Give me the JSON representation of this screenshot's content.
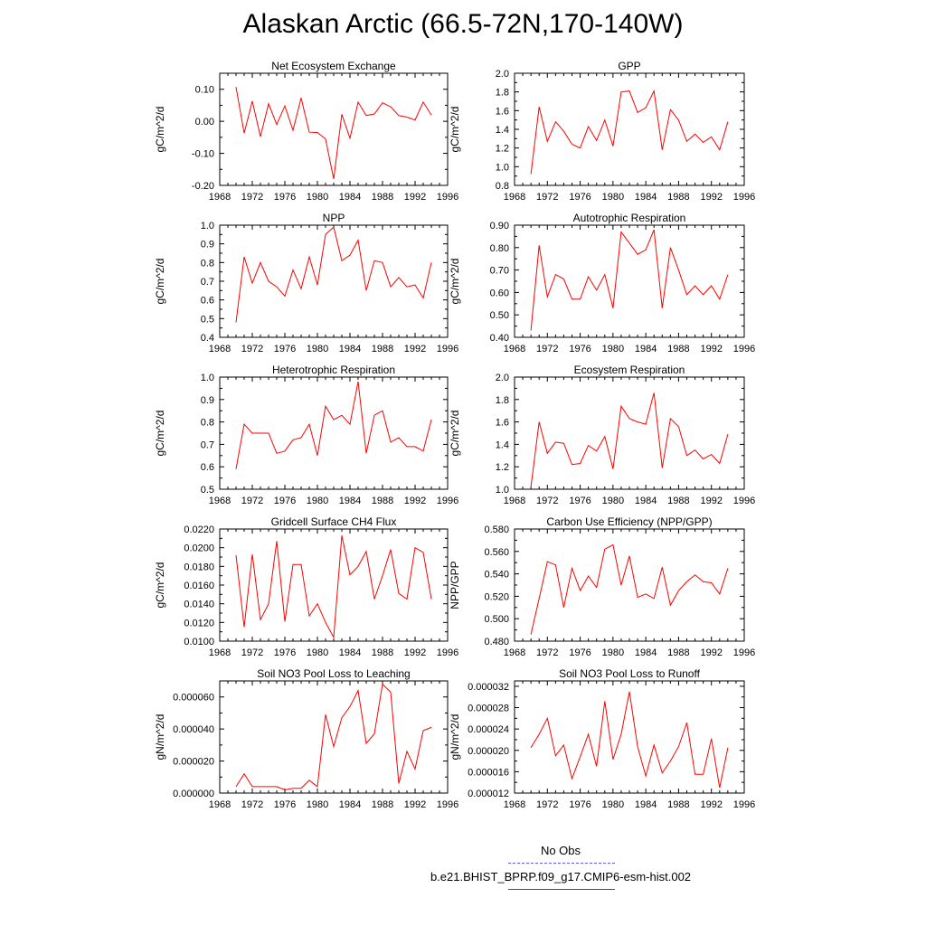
{
  "title": "Alaskan Arctic (66.5-72N,170-140W)",
  "legend": [
    {
      "label": "No Obs",
      "color": "#5a5aff",
      "dash": true
    },
    {
      "label": "b.e21.BHIST_BPRP.f09_g17.CMIP6-esm-hist.002",
      "color": "#ff0000",
      "dash": false
    }
  ],
  "chart_data": [
    {
      "type": "line",
      "title": "Net Ecosystem Exchange",
      "ylabel": "gC/m^2/d",
      "xlim": [
        1968,
        1996
      ],
      "xticks": [
        "1968",
        "1972",
        "1976",
        "1980",
        "1984",
        "1988",
        "1992",
        "1996"
      ],
      "ylim": [
        -0.2,
        0.15
      ],
      "yticks": [
        -0.2,
        -0.1,
        0.0,
        0.1
      ],
      "ytick_labels": [
        "-0.20",
        "-0.10",
        "0.00",
        "0.10"
      ],
      "x": [
        1970,
        1971,
        1972,
        1973,
        1974,
        1975,
        1976,
        1977,
        1978,
        1979,
        1980,
        1981,
        1982,
        1983,
        1984,
        1985,
        1986,
        1987,
        1988,
        1989,
        1990,
        1991,
        1992,
        1993,
        1994
      ],
      "series": [
        {
          "values": [
            0.107,
            -0.037,
            0.063,
            -0.048,
            0.055,
            -0.01,
            0.048,
            -0.028,
            0.073,
            -0.034,
            -0.035,
            -0.055,
            -0.18,
            0.022,
            -0.053,
            0.06,
            0.018,
            0.023,
            0.058,
            0.045,
            0.018,
            0.013,
            0.004,
            0.06,
            0.02
          ],
          "color": "#ff0000"
        }
      ]
    },
    {
      "type": "line",
      "title": "GPP",
      "ylabel": "gC/m^2/d",
      "xlim": [
        1968,
        1996
      ],
      "xticks": [
        "1968",
        "1972",
        "1976",
        "1980",
        "1984",
        "1988",
        "1992",
        "1996"
      ],
      "ylim": [
        0.8,
        2.0
      ],
      "yticks": [
        0.8,
        1.0,
        1.2,
        1.4,
        1.6,
        1.8,
        2.0
      ],
      "ytick_labels": [
        "0.8",
        "1.0",
        "1.2",
        "1.4",
        "1.6",
        "1.8",
        "2.0"
      ],
      "x": [
        1970,
        1971,
        1972,
        1973,
        1974,
        1975,
        1976,
        1977,
        1978,
        1979,
        1980,
        1981,
        1982,
        1983,
        1984,
        1985,
        1986,
        1987,
        1988,
        1989,
        1990,
        1991,
        1992,
        1993,
        1994
      ],
      "series": [
        {
          "values": [
            0.92,
            1.64,
            1.27,
            1.48,
            1.38,
            1.24,
            1.2,
            1.43,
            1.28,
            1.5,
            1.22,
            1.8,
            1.81,
            1.58,
            1.63,
            1.81,
            1.18,
            1.61,
            1.5,
            1.27,
            1.35,
            1.26,
            1.32,
            1.18,
            1.48
          ],
          "color": "#ff0000"
        }
      ]
    },
    {
      "type": "line",
      "title": "NPP",
      "ylabel": "gC/m^2/d",
      "xlim": [
        1968,
        1996
      ],
      "xticks": [
        "1968",
        "1972",
        "1976",
        "1980",
        "1984",
        "1988",
        "1992",
        "1996"
      ],
      "ylim": [
        0.4,
        1.0
      ],
      "yticks": [
        0.4,
        0.5,
        0.6,
        0.7,
        0.8,
        0.9,
        1.0
      ],
      "ytick_labels": [
        "0.4",
        "0.5",
        "0.6",
        "0.7",
        "0.8",
        "0.9",
        "1.0"
      ],
      "x": [
        1970,
        1971,
        1972,
        1973,
        1974,
        1975,
        1976,
        1977,
        1978,
        1979,
        1980,
        1981,
        1982,
        1983,
        1984,
        1985,
        1986,
        1987,
        1988,
        1989,
        1990,
        1991,
        1992,
        1993,
        1994
      ],
      "series": [
        {
          "values": [
            0.48,
            0.83,
            0.69,
            0.8,
            0.7,
            0.67,
            0.62,
            0.76,
            0.66,
            0.83,
            0.68,
            0.95,
            0.99,
            0.81,
            0.84,
            0.92,
            0.65,
            0.81,
            0.8,
            0.67,
            0.72,
            0.67,
            0.68,
            0.61,
            0.8
          ],
          "color": "#ff0000"
        }
      ]
    },
    {
      "type": "line",
      "title": "Autotrophic Respiration",
      "ylabel": "gC/m^2/d",
      "xlim": [
        1968,
        1996
      ],
      "xticks": [
        "1968",
        "1972",
        "1976",
        "1980",
        "1984",
        "1988",
        "1992",
        "1996"
      ],
      "ylim": [
        0.4,
        0.9
      ],
      "yticks": [
        0.4,
        0.5,
        0.6,
        0.7,
        0.8,
        0.9
      ],
      "ytick_labels": [
        "0.40",
        "0.50",
        "0.60",
        "0.70",
        "0.80",
        "0.90"
      ],
      "x": [
        1970,
        1971,
        1972,
        1973,
        1974,
        1975,
        1976,
        1977,
        1978,
        1979,
        1980,
        1981,
        1982,
        1983,
        1984,
        1985,
        1986,
        1987,
        1988,
        1989,
        1990,
        1991,
        1992,
        1993,
        1994
      ],
      "series": [
        {
          "values": [
            0.43,
            0.81,
            0.58,
            0.68,
            0.66,
            0.57,
            0.57,
            0.67,
            0.61,
            0.68,
            0.53,
            0.87,
            0.82,
            0.77,
            0.79,
            0.88,
            0.53,
            0.8,
            0.7,
            0.59,
            0.63,
            0.59,
            0.63,
            0.57,
            0.68
          ],
          "color": "#ff0000"
        }
      ]
    },
    {
      "type": "line",
      "title": "Heterotrophic Respiration",
      "ylabel": "gC/m^2/d",
      "xlim": [
        1968,
        1996
      ],
      "xticks": [
        "1968",
        "1972",
        "1976",
        "1980",
        "1984",
        "1988",
        "1992",
        "1996"
      ],
      "ylim": [
        0.5,
        1.0
      ],
      "yticks": [
        0.5,
        0.6,
        0.7,
        0.8,
        0.9,
        1.0
      ],
      "ytick_labels": [
        "0.5",
        "0.6",
        "0.7",
        "0.8",
        "0.9",
        "1.0"
      ],
      "x": [
        1970,
        1971,
        1972,
        1973,
        1974,
        1975,
        1976,
        1977,
        1978,
        1979,
        1980,
        1981,
        1982,
        1983,
        1984,
        1985,
        1986,
        1987,
        1988,
        1989,
        1990,
        1991,
        1992,
        1993,
        1994
      ],
      "series": [
        {
          "values": [
            0.59,
            0.79,
            0.75,
            0.75,
            0.75,
            0.66,
            0.67,
            0.72,
            0.73,
            0.79,
            0.65,
            0.87,
            0.81,
            0.83,
            0.79,
            0.98,
            0.66,
            0.83,
            0.85,
            0.71,
            0.73,
            0.69,
            0.69,
            0.67,
            0.81
          ],
          "color": "#ff0000"
        }
      ]
    },
    {
      "type": "line",
      "title": "Ecosystem Respiration",
      "ylabel": "gC/m^2/d",
      "xlim": [
        1968,
        1996
      ],
      "xticks": [
        "1968",
        "1972",
        "1976",
        "1980",
        "1984",
        "1988",
        "1992",
        "1996"
      ],
      "ylim": [
        1.0,
        2.0
      ],
      "yticks": [
        1.0,
        1.2,
        1.4,
        1.6,
        1.8,
        2.0
      ],
      "ytick_labels": [
        "1.0",
        "1.2",
        "1.4",
        "1.6",
        "1.8",
        "2.0"
      ],
      "x": [
        1970,
        1971,
        1972,
        1973,
        1974,
        1975,
        1976,
        1977,
        1978,
        1979,
        1980,
        1981,
        1982,
        1983,
        1984,
        1985,
        1986,
        1987,
        1988,
        1989,
        1990,
        1991,
        1992,
        1993,
        1994
      ],
      "series": [
        {
          "values": [
            1.02,
            1.6,
            1.32,
            1.42,
            1.41,
            1.22,
            1.23,
            1.39,
            1.34,
            1.47,
            1.18,
            1.74,
            1.63,
            1.6,
            1.58,
            1.86,
            1.19,
            1.63,
            1.56,
            1.3,
            1.35,
            1.27,
            1.31,
            1.23,
            1.49
          ],
          "color": "#ff0000"
        }
      ]
    },
    {
      "type": "line",
      "title": "Gridcell Surface CH4 Flux",
      "ylabel": "gC/m^2/d",
      "xlim": [
        1968,
        1996
      ],
      "xticks": [
        "1968",
        "1972",
        "1976",
        "1980",
        "1984",
        "1988",
        "1992",
        "1996"
      ],
      "ylim": [
        0.01,
        0.022
      ],
      "yticks": [
        0.01,
        0.012,
        0.014,
        0.016,
        0.018,
        0.02,
        0.022
      ],
      "ytick_labels": [
        "0.0100",
        "0.0120",
        "0.0140",
        "0.0160",
        "0.0180",
        "0.0200",
        "0.0220"
      ],
      "x": [
        1970,
        1971,
        1972,
        1973,
        1974,
        1975,
        1976,
        1977,
        1978,
        1979,
        1980,
        1981,
        1982,
        1983,
        1984,
        1985,
        1986,
        1987,
        1988,
        1989,
        1990,
        1991,
        1992,
        1993,
        1994
      ],
      "series": [
        {
          "values": [
            0.0192,
            0.0115,
            0.0193,
            0.0123,
            0.014,
            0.0207,
            0.0121,
            0.0182,
            0.0182,
            0.0127,
            0.014,
            0.012,
            0.0104,
            0.0213,
            0.0171,
            0.018,
            0.0196,
            0.0145,
            0.017,
            0.0198,
            0.0151,
            0.0145,
            0.02,
            0.0195,
            0.0145
          ],
          "color": "#ff0000"
        }
      ]
    },
    {
      "type": "line",
      "title": "Carbon Use Efficiency (NPP/GPP)",
      "ylabel": "NPP/GPP",
      "xlim": [
        1968,
        1996
      ],
      "xticks": [
        "1968",
        "1972",
        "1976",
        "1980",
        "1984",
        "1988",
        "1992",
        "1996"
      ],
      "ylim": [
        0.48,
        0.58
      ],
      "yticks": [
        0.48,
        0.5,
        0.52,
        0.54,
        0.56,
        0.58
      ],
      "ytick_labels": [
        "0.480",
        "0.500",
        "0.520",
        "0.540",
        "0.560",
        "0.580"
      ],
      "x": [
        1970,
        1971,
        1972,
        1973,
        1974,
        1975,
        1976,
        1977,
        1978,
        1979,
        1980,
        1981,
        1982,
        1983,
        1984,
        1985,
        1986,
        1987,
        1988,
        1989,
        1990,
        1991,
        1992,
        1993,
        1994
      ],
      "series": [
        {
          "values": [
            0.486,
            0.518,
            0.551,
            0.548,
            0.51,
            0.545,
            0.525,
            0.538,
            0.528,
            0.562,
            0.566,
            0.53,
            0.556,
            0.519,
            0.522,
            0.518,
            0.546,
            0.512,
            0.525,
            0.533,
            0.539,
            0.533,
            0.532,
            0.522,
            0.545
          ],
          "color": "#ff0000"
        }
      ]
    },
    {
      "type": "line",
      "title": "Soil NO3 Pool Loss to Leaching",
      "ylabel": "gN/m^2/d",
      "xlim": [
        1968,
        1996
      ],
      "xticks": [
        "1968",
        "1972",
        "1976",
        "1980",
        "1984",
        "1988",
        "1992",
        "1996"
      ],
      "ylim": [
        0.0,
        7e-05
      ],
      "yticks": [
        0.0,
        2e-05,
        4e-05,
        6e-05
      ],
      "ytick_labels": [
        "0.000000",
        "0.000020",
        "0.000040",
        "0.000060"
      ],
      "x": [
        1970,
        1971,
        1972,
        1973,
        1974,
        1975,
        1976,
        1977,
        1978,
        1979,
        1980,
        1981,
        1982,
        1983,
        1984,
        1985,
        1986,
        1987,
        1988,
        1989,
        1990,
        1991,
        1992,
        1993,
        1994
      ],
      "series": [
        {
          "values": [
            4e-06,
            1.2e-05,
            4e-06,
            4e-06,
            4e-06,
            4e-06,
            2e-06,
            3e-06,
            3e-06,
            8e-06,
            4e-06,
            4.9e-05,
            2.9e-05,
            4.7e-05,
            5.4e-05,
            6.4e-05,
            3.1e-05,
            3.7e-05,
            6.8e-05,
            6.3e-05,
            6e-06,
            2.6e-05,
            1.5e-05,
            3.9e-05,
            4.1e-05
          ],
          "color": "#ff0000"
        }
      ]
    },
    {
      "type": "line",
      "title": "Soil NO3 Pool Loss to Runoff",
      "ylabel": "gN/m^2/d",
      "xlim": [
        1968,
        1996
      ],
      "xticks": [
        "1968",
        "1972",
        "1976",
        "1980",
        "1984",
        "1988",
        "1992",
        "1996"
      ],
      "ylim": [
        1.2e-05,
        3.3e-05
      ],
      "yticks": [
        1.2e-05,
        1.6e-05,
        2e-05,
        2.4e-05,
        2.8e-05,
        3.2e-05
      ],
      "ytick_labels": [
        "0.000012",
        "0.000016",
        "0.000020",
        "0.000024",
        "0.000028",
        "0.000032"
      ],
      "x": [
        1970,
        1971,
        1972,
        1973,
        1974,
        1975,
        1976,
        1977,
        1978,
        1979,
        1980,
        1981,
        1982,
        1983,
        1984,
        1985,
        1986,
        1987,
        1988,
        1989,
        1990,
        1991,
        1992,
        1993,
        1994
      ],
      "series": [
        {
          "values": [
            2.05e-05,
            2.3e-05,
            2.6e-05,
            1.9e-05,
            2.1e-05,
            1.47e-05,
            1.88e-05,
            2.3e-05,
            1.7e-05,
            2.92e-05,
            1.83e-05,
            2.3e-05,
            3.1e-05,
            2.07e-05,
            1.52e-05,
            2.1e-05,
            1.58e-05,
            1.8e-05,
            2.07e-05,
            2.52e-05,
            1.55e-05,
            1.55e-05,
            2.22e-05,
            1.3e-05,
            2.05e-05
          ],
          "color": "#ff0000"
        }
      ]
    }
  ]
}
